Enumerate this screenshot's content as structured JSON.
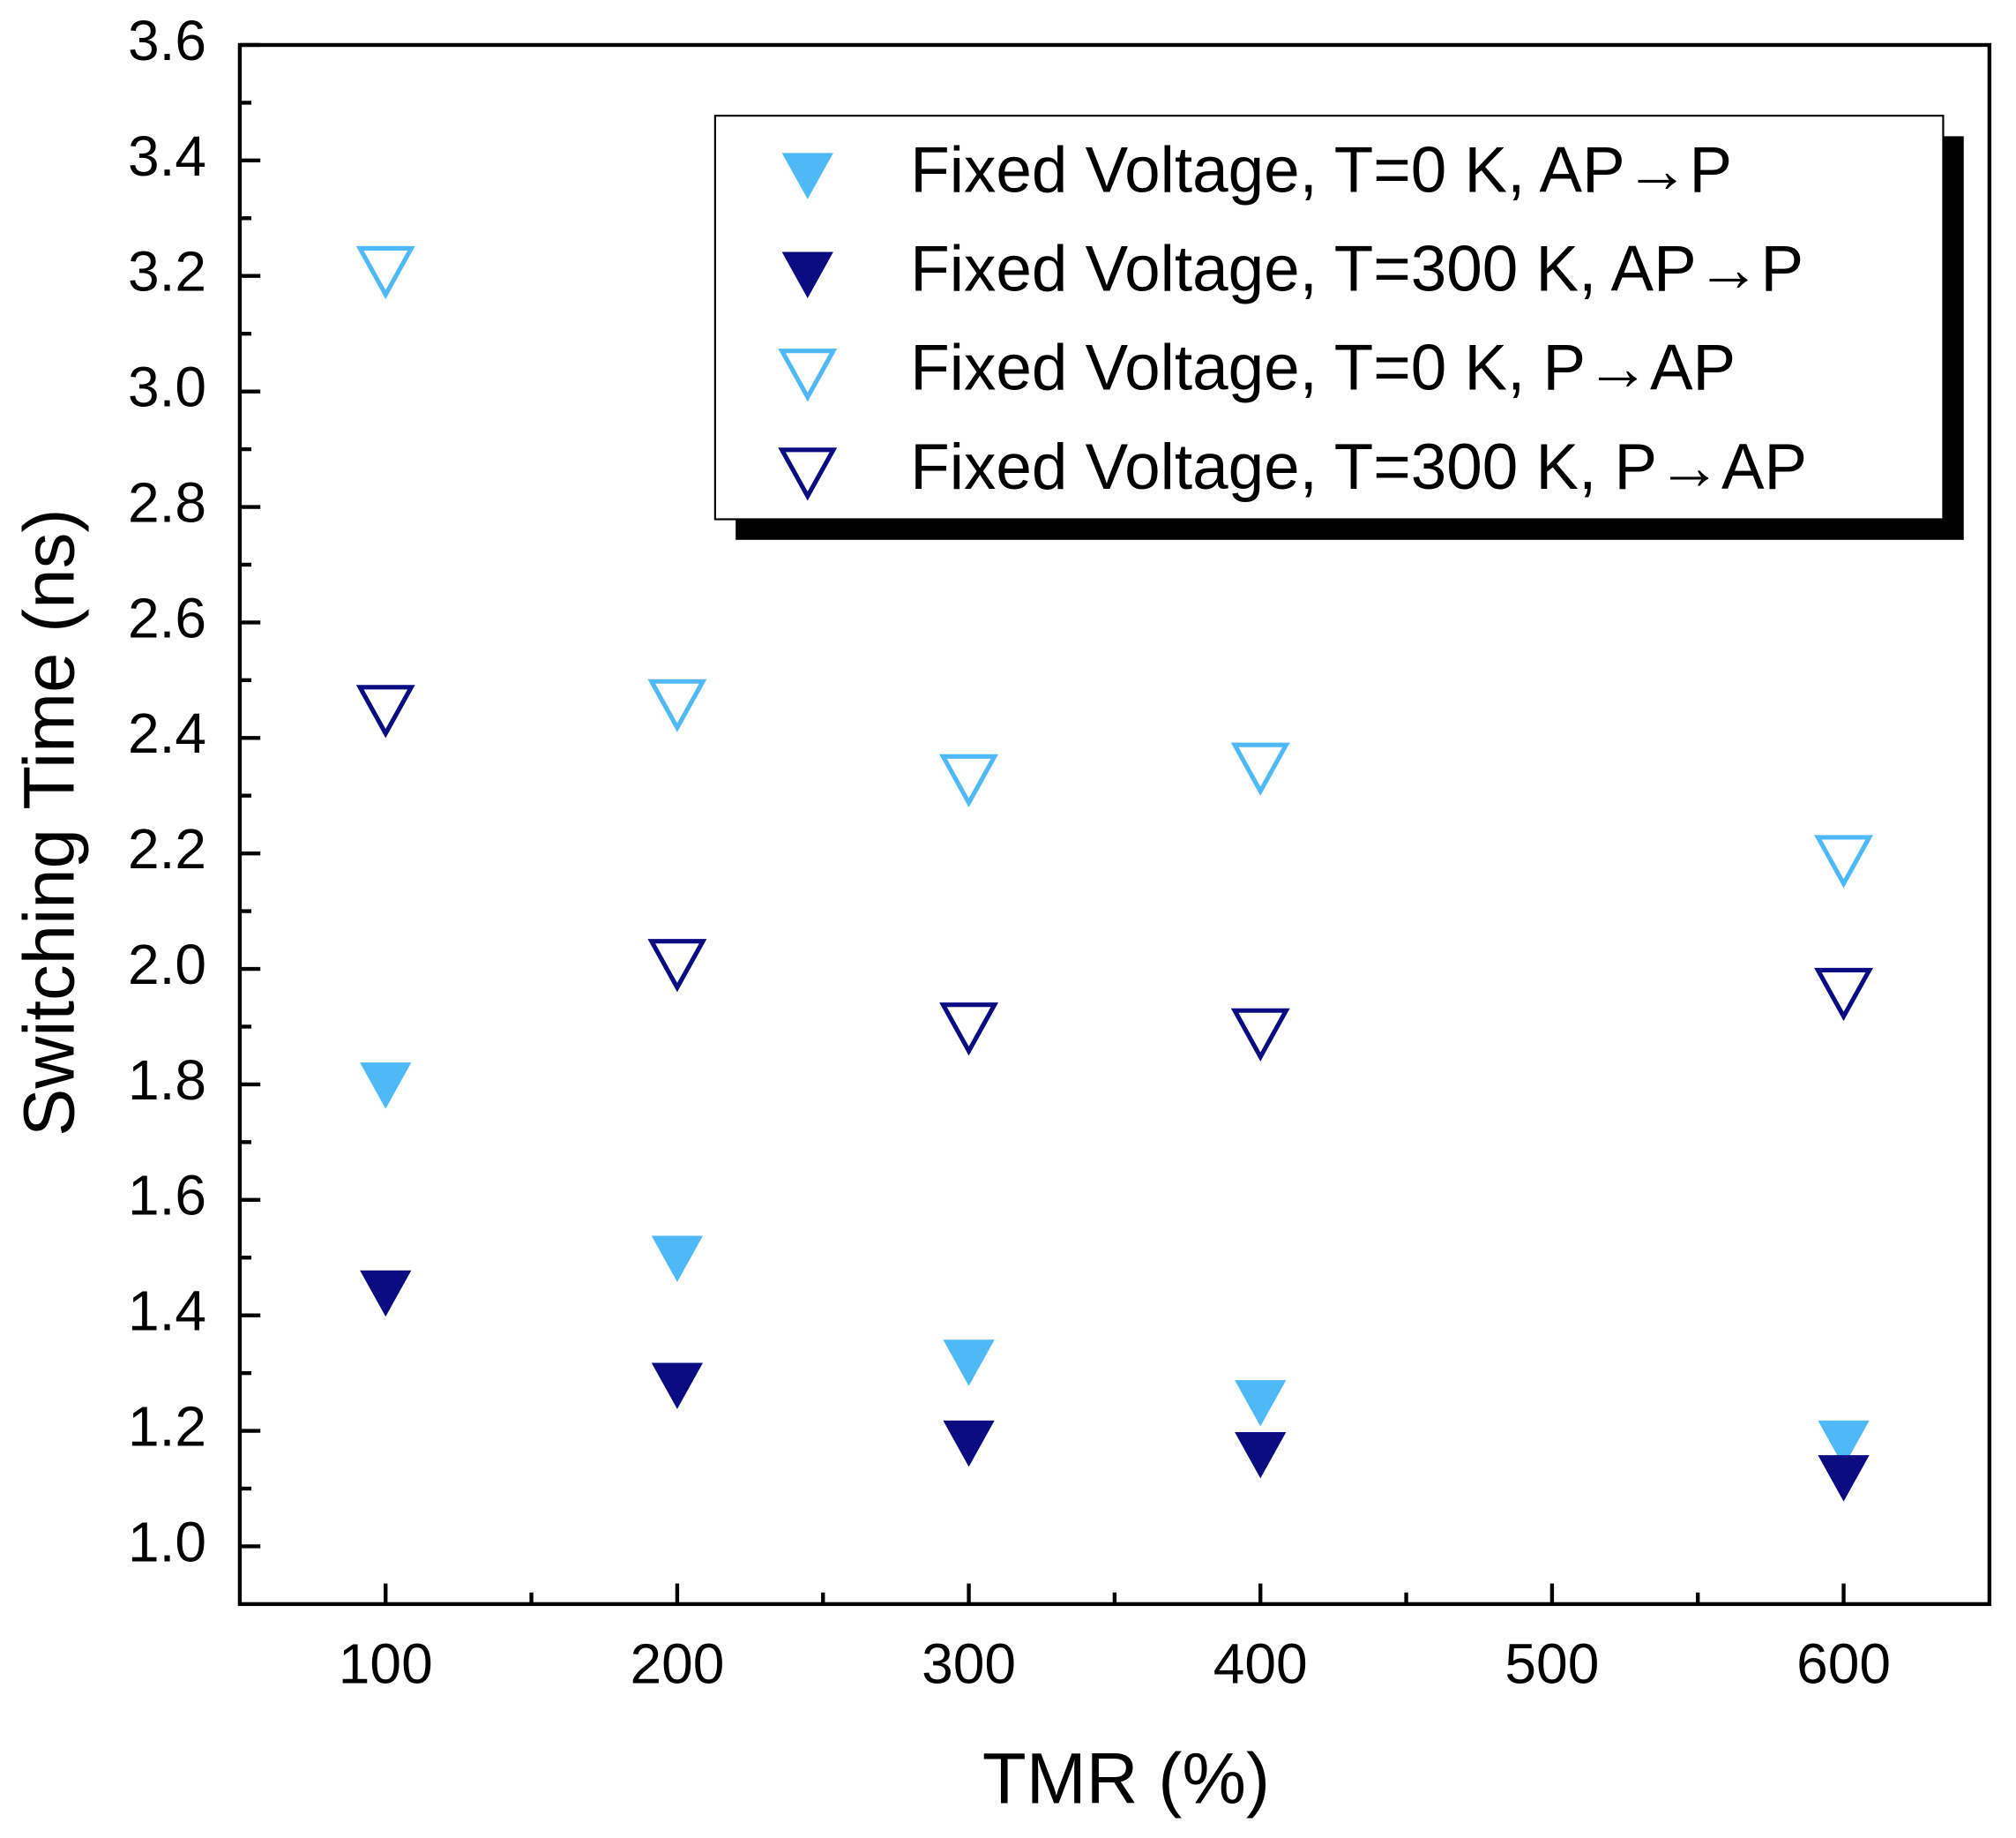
{
  "chart_data": {
    "type": "scatter",
    "x_label": "TMR (%)",
    "y_label": "Switching Time (ns)",
    "x": [
      100,
      200,
      300,
      400,
      600
    ],
    "series": [
      {
        "name": "Fixed Voltage, T=0 K, AP→P",
        "color": "#4fb9f7",
        "marker": "triangle-down-filled",
        "values": [
          1.8,
          1.5,
          1.32,
          1.25,
          1.18
        ]
      },
      {
        "name": "Fixed Voltage, T=300 K, AP→P",
        "color": "#0b0b82",
        "marker": "triangle-down-filled",
        "values": [
          1.44,
          1.28,
          1.18,
          1.16,
          1.12
        ]
      },
      {
        "name": "Fixed Voltage, T=0 K, P→AP",
        "color": "#4fb9f7",
        "marker": "triangle-down-open",
        "values": [
          3.21,
          2.46,
          2.33,
          2.35,
          2.19
        ]
      },
      {
        "name": "Fixed Voltage, T=300 K, P→AP",
        "color": "#0b0b82",
        "marker": "triangle-down-open",
        "values": [
          2.45,
          2.01,
          1.9,
          1.89,
          1.96
        ]
      }
    ],
    "xlim": [
      50,
      650
    ],
    "xticks": [
      100,
      200,
      300,
      400,
      500,
      600
    ],
    "x_minor_ticks": [
      150,
      250,
      350,
      450,
      550
    ],
    "ylim": [
      0.9,
      3.6
    ],
    "yticks": [
      {
        "value": 1,
        "label": "1.0"
      },
      1.2,
      1.4,
      1.6,
      1.8,
      {
        "value": 2,
        "label": "2.0"
      },
      2.2,
      2.4,
      2.6,
      2.8,
      {
        "value": 3,
        "label": "3.0"
      },
      3.2,
      3.4,
      3.6
    ],
    "y_minor_ticks": [
      1.1,
      1.3,
      1.5,
      1.7,
      1.9,
      2.1,
      2.3,
      2.5,
      2.7,
      2.9,
      3.1,
      3.3,
      3.5
    ],
    "legend": "upper right"
  }
}
